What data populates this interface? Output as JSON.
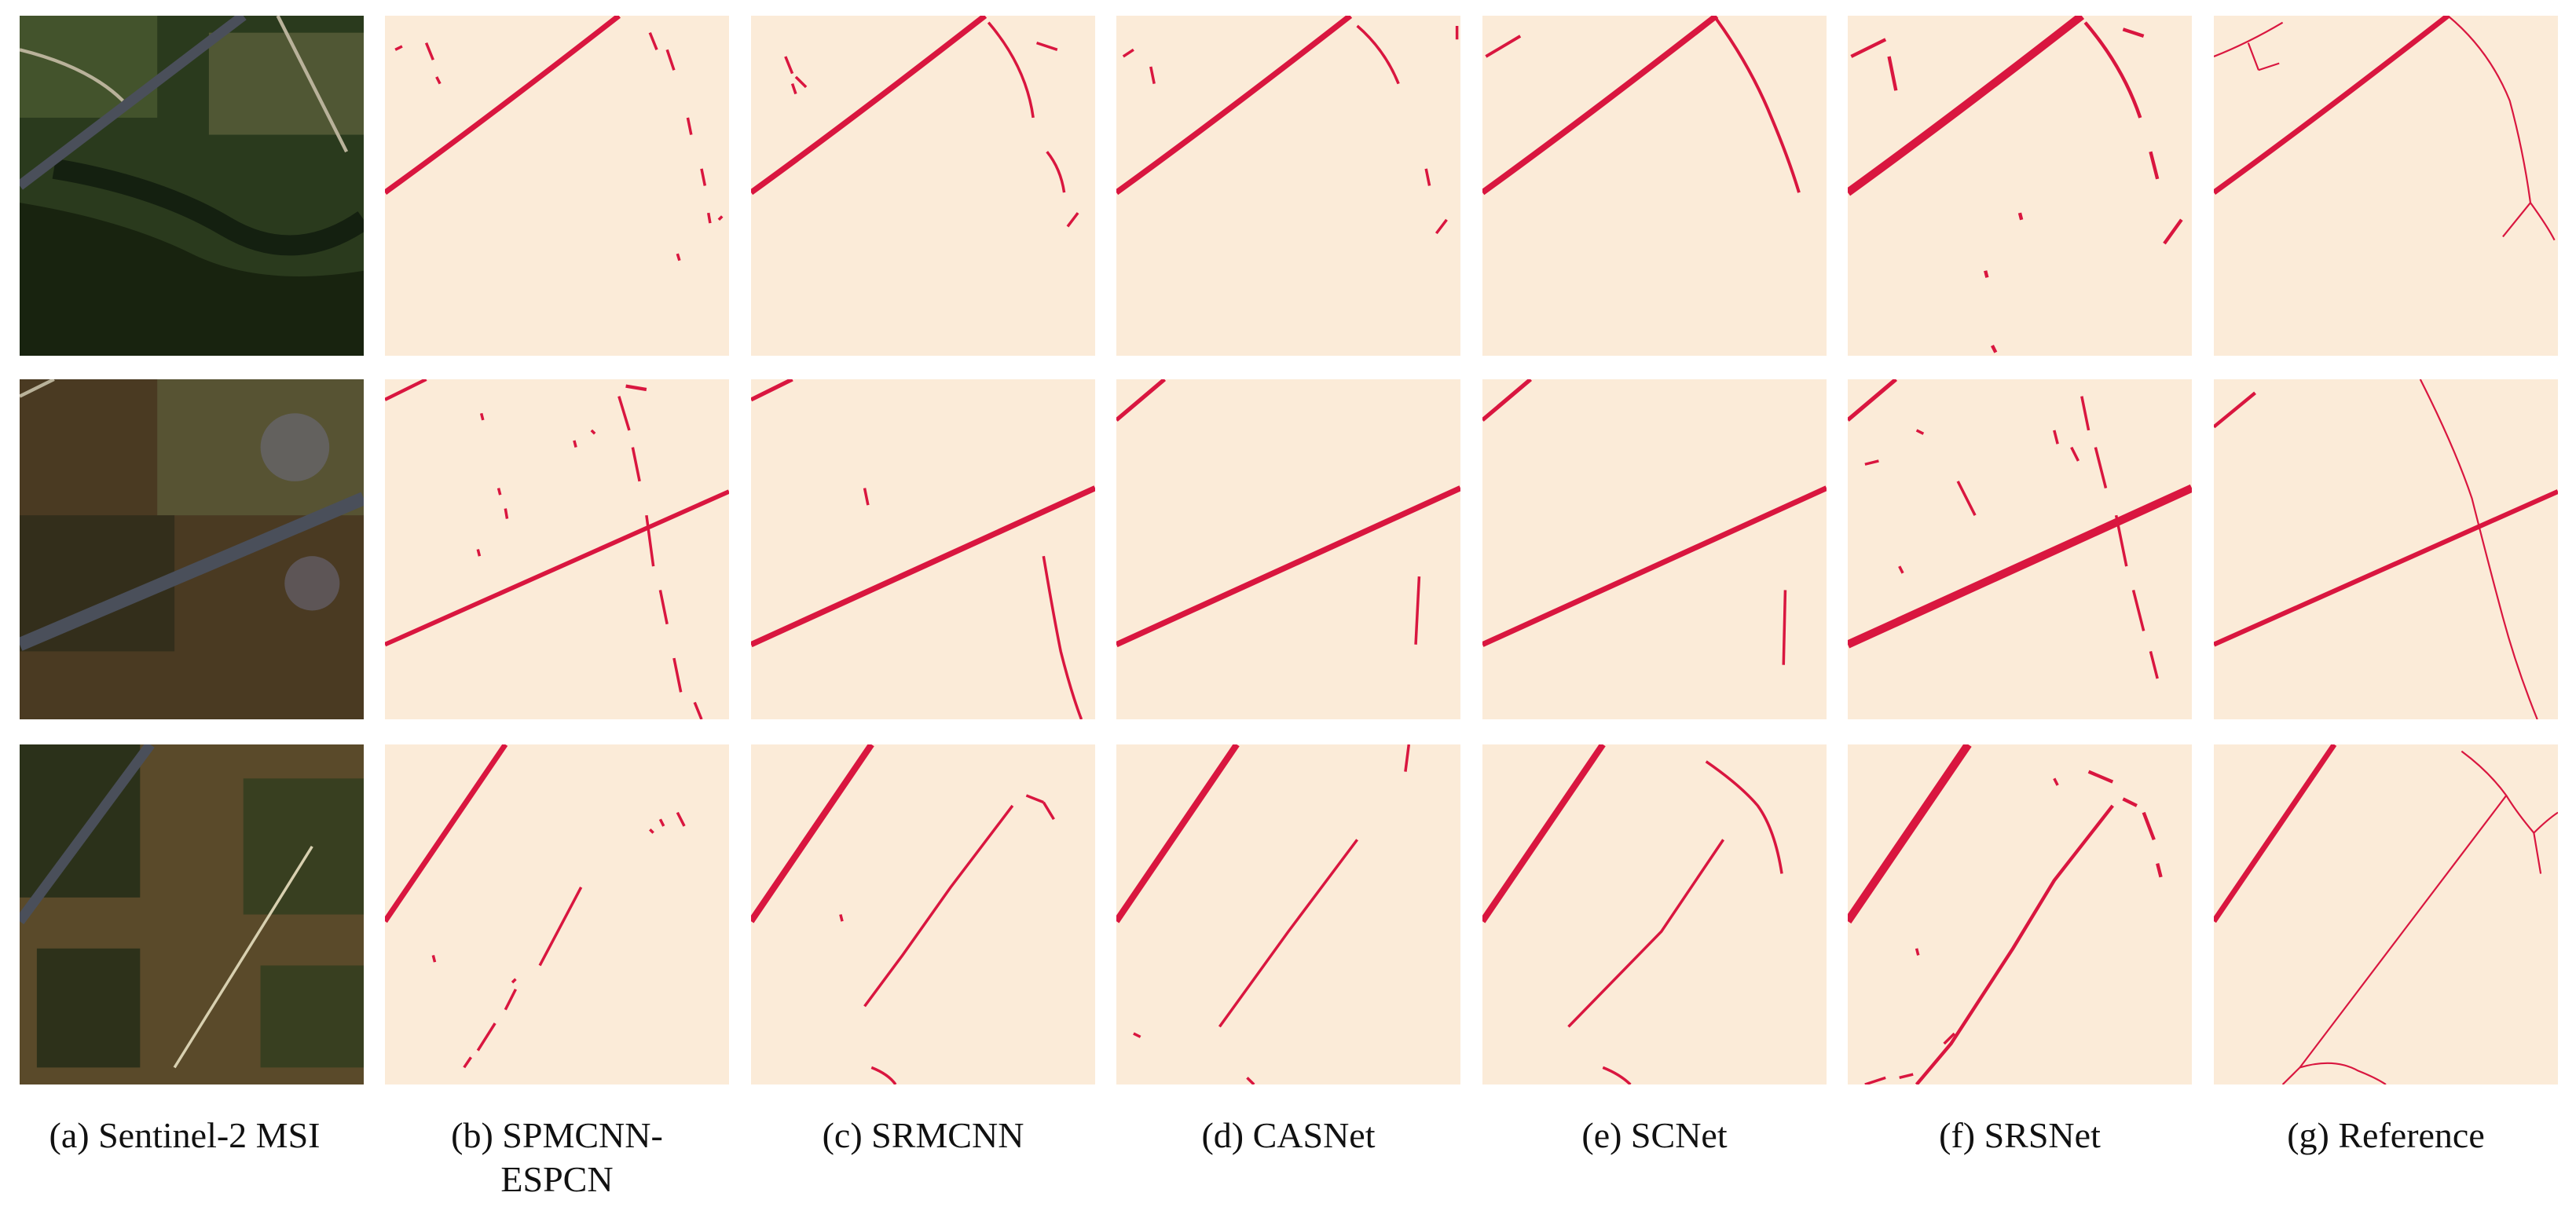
{
  "colors": {
    "background": "#fbebd8",
    "road": "#d9163f",
    "satellite_dark": "#1f2a16",
    "satellite_mid": "#3d4a25",
    "satellite_light": "#7a6a42",
    "highway": "#4a4f5a"
  },
  "columns": [
    {
      "label": "(a) Sentinel-2 MSI"
    },
    {
      "label": "(b) SPMCNN-\nESPCN"
    },
    {
      "label": "(c) SRMCNN"
    },
    {
      "label": "(d) CASNet"
    },
    {
      "label": "(e) SCNet"
    },
    {
      "label": "(f) SRSNet"
    },
    {
      "label": "(g) Reference"
    }
  ]
}
